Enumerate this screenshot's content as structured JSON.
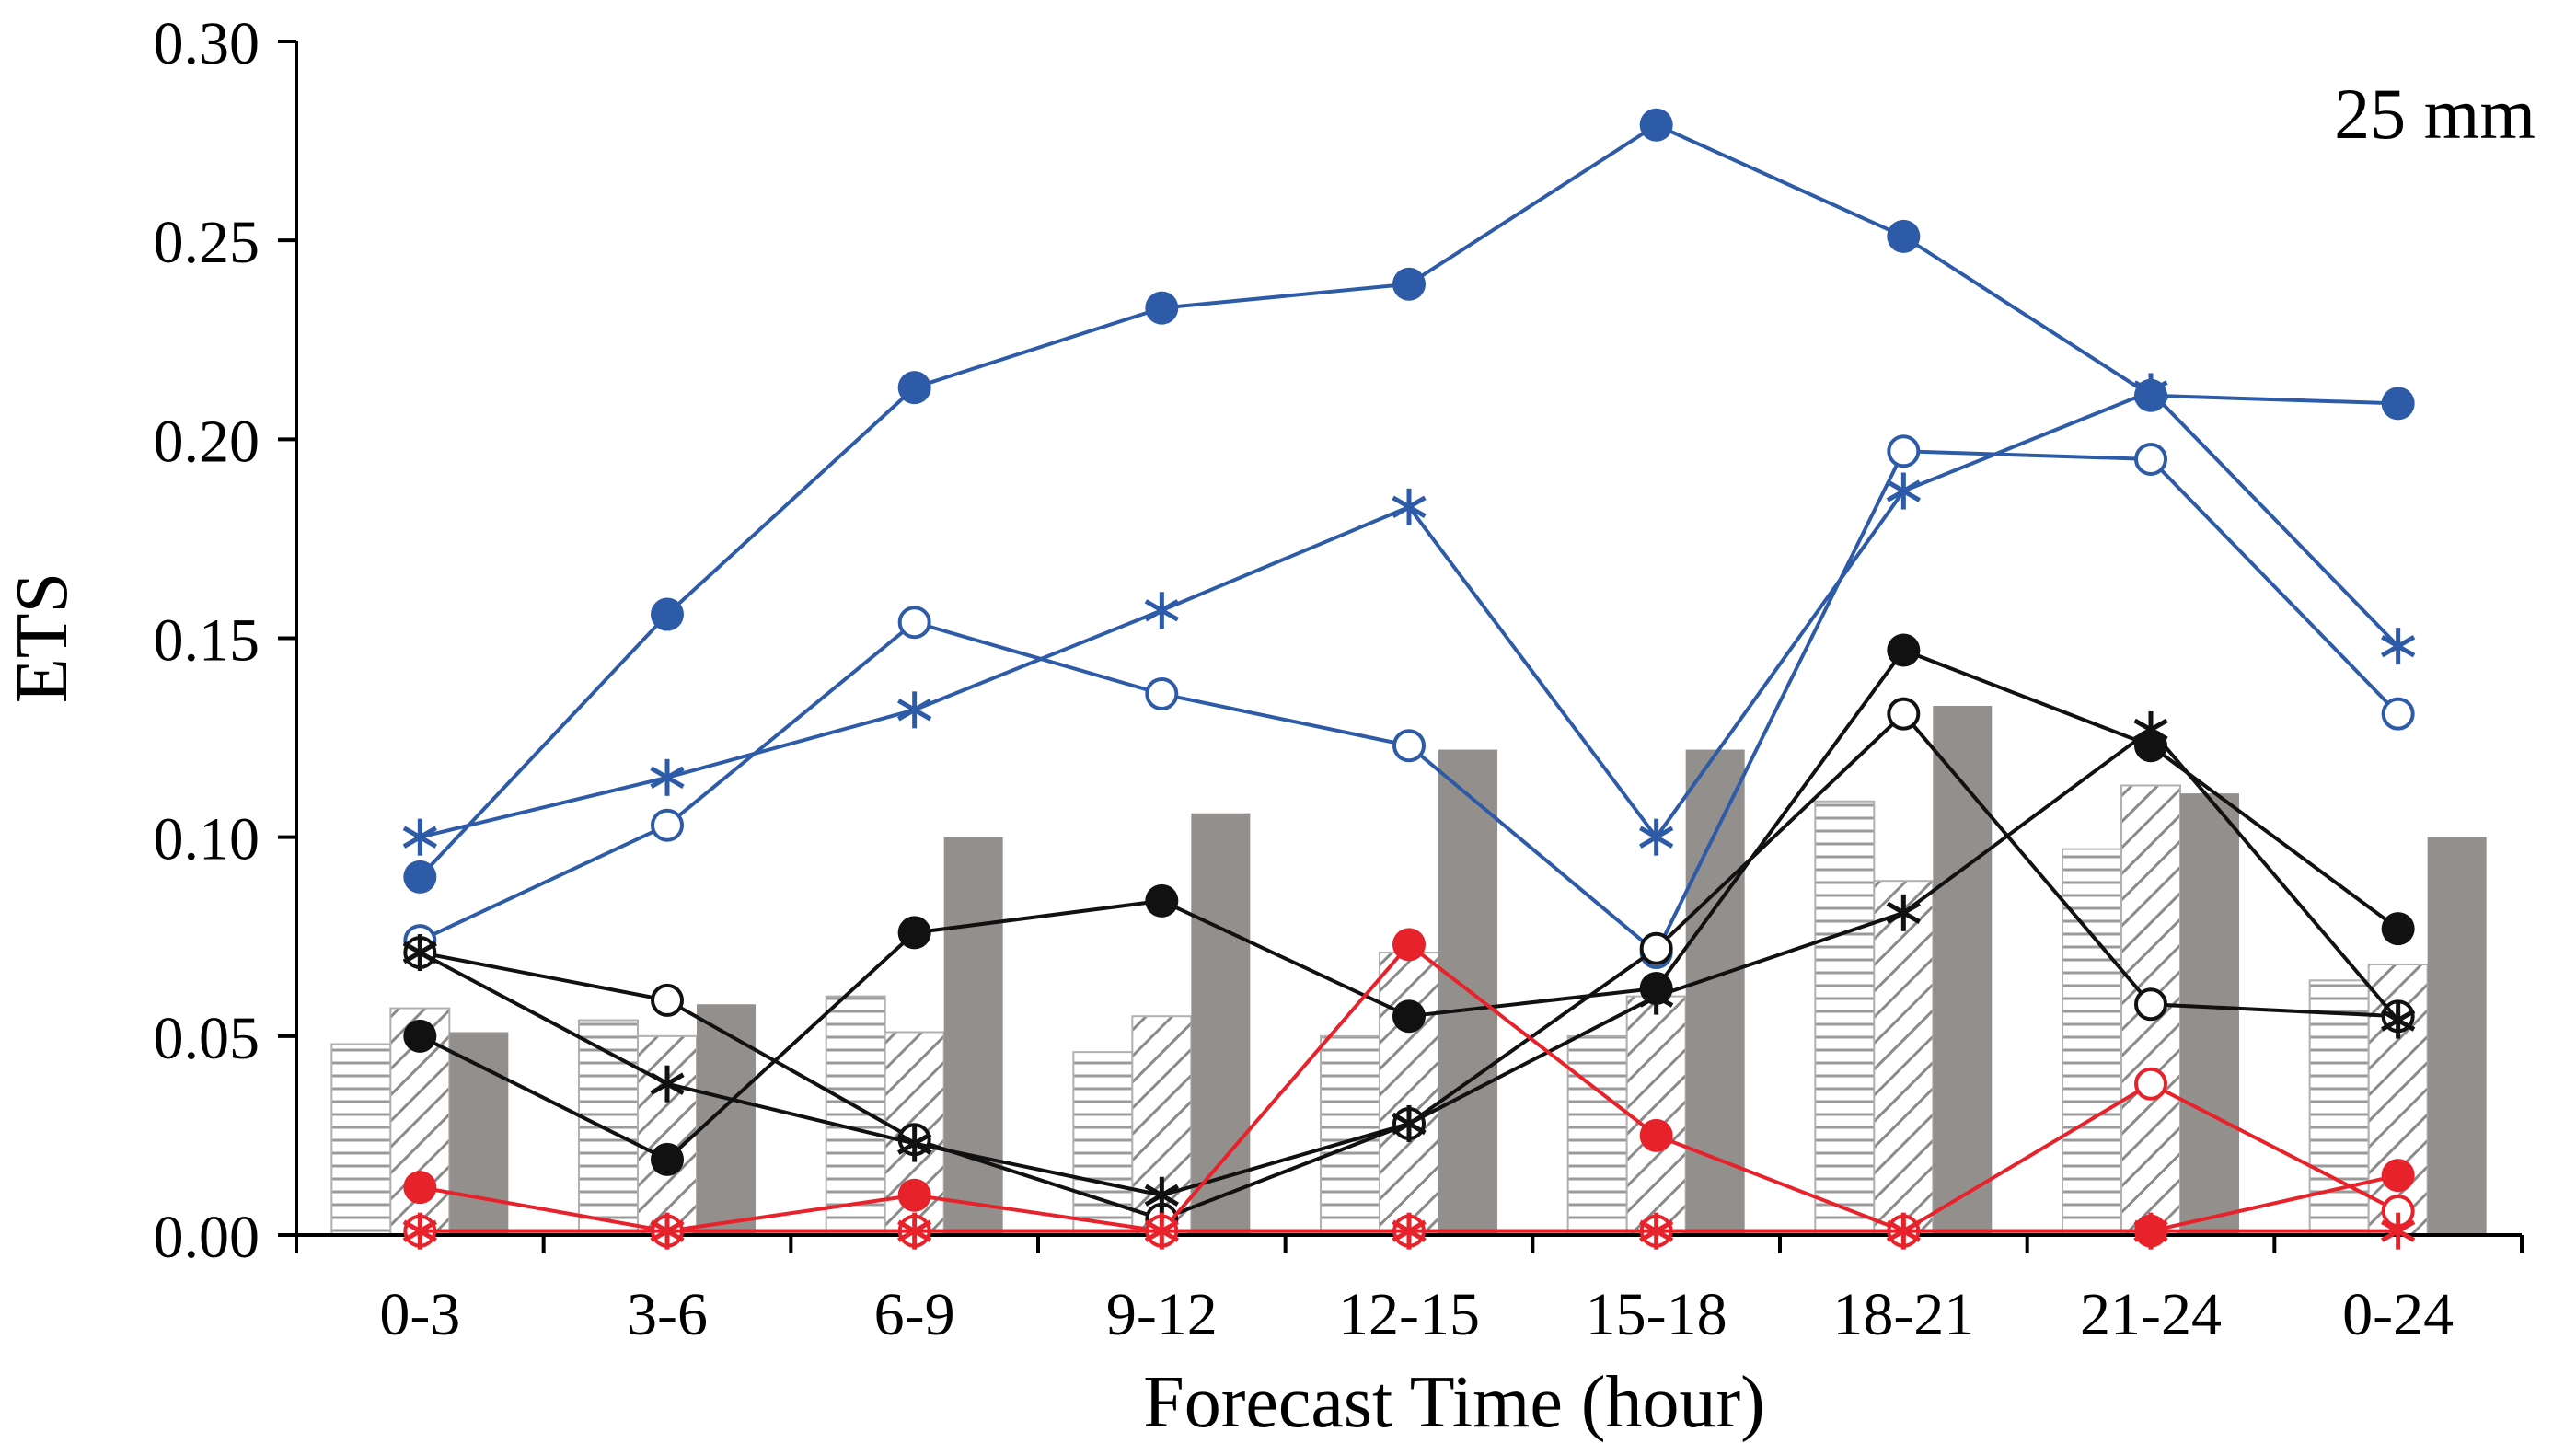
{
  "chart_data": {
    "type": "bar",
    "title": "",
    "annotation": "25 mm",
    "xlabel": "Forecast Time (hour)",
    "ylabel": "ETS",
    "ylim": [
      0,
      0.3
    ],
    "yticks": [
      "0.00",
      "0.05",
      "0.10",
      "0.15",
      "0.20",
      "0.25",
      "0.30"
    ],
    "categories": [
      "0-3",
      "3-6",
      "6-9",
      "9-12",
      "12-15",
      "15-18",
      "18-21",
      "21-24",
      "0-24"
    ],
    "grid": false,
    "legend": "none",
    "bars": [
      {
        "pattern": "horizontal-lines",
        "values": [
          0.048,
          0.054,
          0.06,
          0.046,
          0.05,
          0.05,
          0.109,
          0.097,
          0.064
        ]
      },
      {
        "pattern": "diagonal-hatch",
        "values": [
          0.057,
          0.05,
          0.051,
          0.055,
          0.071,
          0.06,
          0.089,
          0.113,
          0.068
        ]
      },
      {
        "pattern": "solid-gray",
        "color": "#938f8c",
        "values": [
          0.051,
          0.058,
          0.1,
          0.106,
          0.122,
          0.122,
          0.133,
          0.111,
          0.1
        ]
      }
    ],
    "lines": [
      {
        "color": "#2d5ba8",
        "marker": "filled-circle",
        "values": [
          0.09,
          0.156,
          0.213,
          0.233,
          0.239,
          0.279,
          0.251,
          0.211,
          0.209
        ]
      },
      {
        "color": "#2d5ba8",
        "marker": "open-circle",
        "values": [
          0.074,
          0.103,
          0.154,
          0.136,
          0.123,
          0.071,
          0.197,
          0.195,
          0.131
        ]
      },
      {
        "color": "#2d5ba8",
        "marker": "asterisk",
        "values": [
          0.1,
          0.115,
          0.132,
          0.157,
          0.183,
          0.1,
          0.187,
          0.212,
          0.148
        ]
      },
      {
        "color": "#111111",
        "marker": "filled-circle",
        "values": [
          0.05,
          0.019,
          0.076,
          0.084,
          0.055,
          0.062,
          0.147,
          0.123,
          0.077
        ]
      },
      {
        "color": "#111111",
        "marker": "open-circle",
        "values": [
          0.071,
          0.059,
          0.024,
          0.004,
          0.028,
          0.072,
          0.131,
          0.058,
          0.055
        ]
      },
      {
        "color": "#111111",
        "marker": "asterisk",
        "values": [
          0.071,
          0.038,
          0.023,
          0.01,
          0.028,
          0.06,
          0.081,
          0.127,
          0.054
        ]
      },
      {
        "color": "#e8222b",
        "marker": "filled-circle",
        "values": [
          0.012,
          0.001,
          0.01,
          0.001,
          0.073,
          0.025,
          0.001,
          0.001,
          0.015
        ]
      },
      {
        "color": "#e8222b",
        "marker": "open-circle",
        "values": [
          0.001,
          0.001,
          0.001,
          0.001,
          0.001,
          0.001,
          0.001,
          0.038,
          0.006
        ]
      },
      {
        "color": "#e8222b",
        "marker": "asterisk",
        "values": [
          0.001,
          0.001,
          0.001,
          0.001,
          0.001,
          0.001,
          0.001,
          0.001,
          0.001
        ]
      }
    ]
  }
}
